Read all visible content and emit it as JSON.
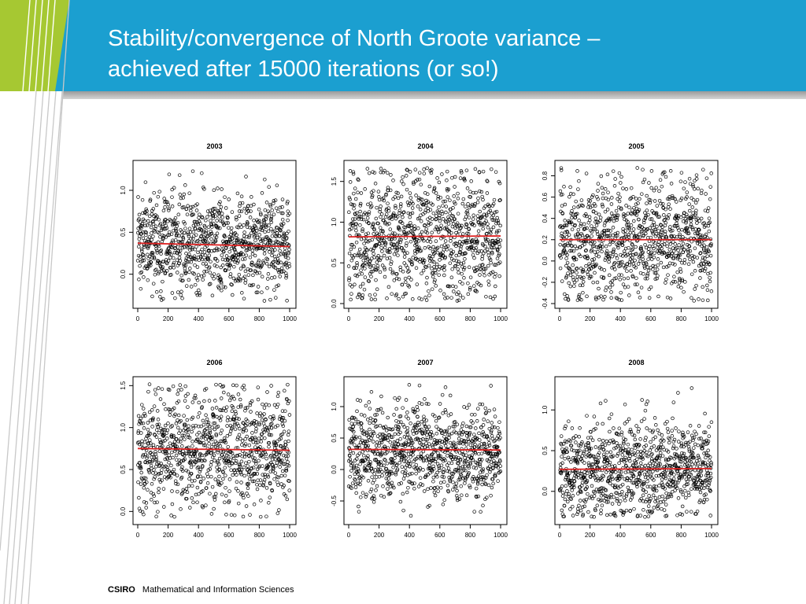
{
  "slide": {
    "title_line1": "Stability/convergence of North Groote variance –",
    "title_line2": "achieved after 15000 iterations (or so!)"
  },
  "footer": {
    "brand": "CSIRO",
    "text": "Mathematical and Information Sciences"
  },
  "colors": {
    "header": "#1b9fd0",
    "accent_green": "#a6c832",
    "trend_line": "#dd2222",
    "points": "#000000"
  },
  "chart_data": [
    {
      "type": "scatter",
      "title": "2003",
      "x_ticks": [
        "0",
        "200",
        "400",
        "600",
        "800",
        "1000"
      ],
      "y_ticks": [
        "0.0",
        "0.5",
        "1.0"
      ],
      "xlim": [
        0,
        1000
      ],
      "ylim": [
        -0.35,
        1.3
      ],
      "n_points": 1000,
      "center": 0.36,
      "spread": 0.3,
      "trend": [
        0.37,
        0.33
      ]
    },
    {
      "type": "scatter",
      "title": "2004",
      "x_ticks": [
        "0",
        "200",
        "400",
        "600",
        "800",
        "1000"
      ],
      "y_ticks": [
        "0.0",
        "0.5",
        "1.0",
        "1.5"
      ],
      "xlim": [
        0,
        1000
      ],
      "ylim": [
        0.0,
        1.7
      ],
      "n_points": 1000,
      "center": 0.84,
      "spread": 0.4,
      "trend": [
        0.82,
        0.83
      ]
    },
    {
      "type": "scatter",
      "title": "2005",
      "x_ticks": [
        "0",
        "200",
        "400",
        "600",
        "800",
        "1000"
      ],
      "y_ticks": [
        "-0.4",
        "-0.2",
        "0.0",
        "0.2",
        "0.4",
        "0.6",
        "0.8"
      ],
      "xlim": [
        0,
        1000
      ],
      "ylim": [
        -0.4,
        0.9
      ],
      "n_points": 1000,
      "center": 0.2,
      "spread": 0.28,
      "trend": [
        0.2,
        0.2
      ]
    },
    {
      "type": "scatter",
      "title": "2006",
      "x_ticks": [
        "0",
        "200",
        "400",
        "600",
        "800",
        "1000"
      ],
      "y_ticks": [
        "0.0",
        "0.5",
        "1.0",
        "1.5"
      ],
      "xlim": [
        0,
        1000
      ],
      "ylim": [
        -0.1,
        1.55
      ],
      "n_points": 1000,
      "center": 0.74,
      "spread": 0.34,
      "trend": [
        0.75,
        0.73
      ]
    },
    {
      "type": "scatter",
      "title": "2007",
      "x_ticks": [
        "0",
        "200",
        "400",
        "600",
        "800",
        "1000"
      ],
      "y_ticks": [
        "-0.5",
        "0.0",
        "0.5",
        "1.0"
      ],
      "xlim": [
        0,
        1000
      ],
      "ylim": [
        -0.8,
        1.4
      ],
      "n_points": 1000,
      "center": 0.3,
      "spread": 0.36,
      "trend": [
        0.32,
        0.31
      ]
    },
    {
      "type": "scatter",
      "title": "2008",
      "x_ticks": [
        "0",
        "200",
        "400",
        "600",
        "800",
        "1000"
      ],
      "y_ticks": [
        "0.0",
        "0.5",
        "1.0"
      ],
      "xlim": [
        0,
        1000
      ],
      "ylim": [
        -0.35,
        1.35
      ],
      "n_points": 1000,
      "center": 0.27,
      "spread": 0.3,
      "trend": [
        0.27,
        0.28
      ]
    }
  ]
}
